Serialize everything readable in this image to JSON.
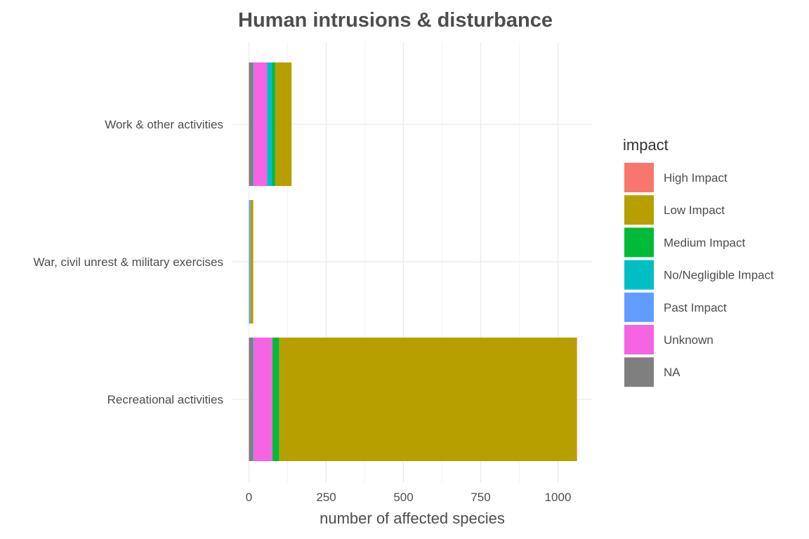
{
  "chart_data": {
    "type": "bar",
    "orientation": "horizontal",
    "stacked": true,
    "title": "Human intrusions & disturbance",
    "xlabel": "number of affected species",
    "ylabel": "",
    "xlim": [
      0,
      1100
    ],
    "x_ticks": [
      0,
      250,
      500,
      750,
      1000
    ],
    "x_tick_labels": [
      "0",
      "250",
      "500",
      "750",
      "1000"
    ],
    "grid": true,
    "legend_title": "impact",
    "legend_position": "right",
    "categories": [
      "Work & other activities",
      "War, civil unrest & military exercises",
      "Recreational activities"
    ],
    "stack_order": [
      "NA",
      "Past Impact",
      "Unknown",
      "No/Negligible Impact",
      "Medium Impact",
      "Low Impact",
      "High Impact"
    ],
    "series": [
      {
        "name": "High Impact",
        "color": "#F8766D",
        "values": [
          0,
          0,
          1
        ]
      },
      {
        "name": "Low Impact",
        "color": "#B79F00",
        "values": [
          53,
          9,
          963
        ]
      },
      {
        "name": "Medium Impact",
        "color": "#00BA38",
        "values": [
          10,
          0,
          22
        ]
      },
      {
        "name": "No/Negligible Impact",
        "color": "#00BFC4",
        "values": [
          16,
          0,
          0
        ]
      },
      {
        "name": "Past Impact",
        "color": "#619CFF",
        "values": [
          2,
          5,
          2
        ]
      },
      {
        "name": "Unknown",
        "color": "#F564E3",
        "values": [
          43,
          0,
          60
        ]
      },
      {
        "name": "NA",
        "color": "#7F7F7F",
        "values": [
          14,
          0,
          14
        ]
      }
    ]
  }
}
